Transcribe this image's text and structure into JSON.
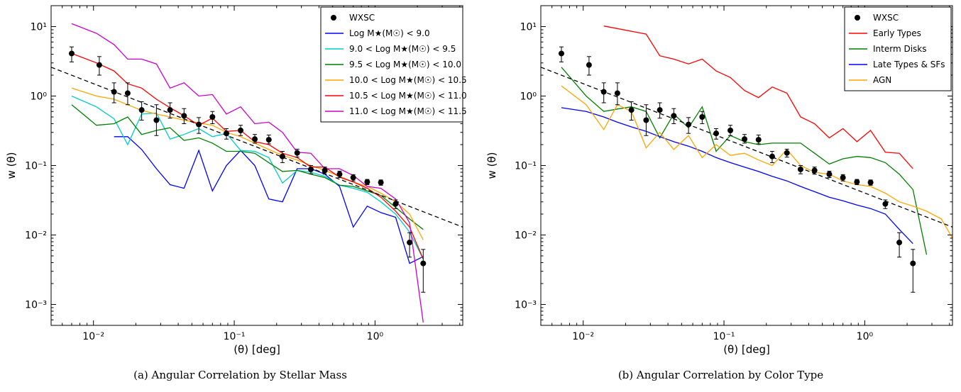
{
  "chart_data": [
    {
      "type": "line",
      "caption": "(a)  Angular Correlation by Stellar Mass",
      "xlabel": "(θ) [deg]",
      "ylabel": "w (θ)",
      "xscale": "log",
      "yscale": "log",
      "xlim": [
        0.005,
        4.2
      ],
      "ylim": [
        0.0005,
        20
      ],
      "xticks": [
        "10⁻²",
        "10⁻¹",
        "10⁰"
      ],
      "yticks": [
        "10⁻³",
        "10⁻²",
        "10⁻¹",
        "10⁰",
        "10¹"
      ],
      "legend_position": "top-right",
      "points": {
        "name": "WXSC",
        "color": "#000000",
        "x": [
          0.007,
          0.011,
          0.014,
          0.0175,
          0.022,
          0.028,
          0.035,
          0.044,
          0.056,
          0.07,
          0.088,
          0.111,
          0.14,
          0.176,
          0.22,
          0.28,
          0.35,
          0.44,
          0.56,
          0.7,
          0.88,
          1.1,
          1.4,
          1.76,
          2.2
        ],
        "y": [
          4.1,
          2.8,
          1.15,
          1.1,
          0.63,
          0.45,
          0.63,
          0.52,
          0.39,
          0.5,
          0.29,
          0.32,
          0.24,
          0.235,
          0.135,
          0.152,
          0.088,
          0.085,
          0.075,
          0.067,
          0.058,
          0.057,
          0.028,
          0.0078,
          0.0039
        ],
        "yerr_lo": [
          1.0,
          0.8,
          0.35,
          0.35,
          0.18,
          0.18,
          0.15,
          0.12,
          0.1,
          0.1,
          0.05,
          0.05,
          0.03,
          0.03,
          0.025,
          0.02,
          0.012,
          0.01,
          0.008,
          0.007,
          0.005,
          0.005,
          0.004,
          0.003,
          0.0024
        ],
        "yerr_hi": [
          1.0,
          0.9,
          0.4,
          0.45,
          0.2,
          0.3,
          0.17,
          0.14,
          0.1,
          0.1,
          0.05,
          0.06,
          0.04,
          0.04,
          0.025,
          0.02,
          0.012,
          0.01,
          0.008,
          0.007,
          0.005,
          0.005,
          0.004,
          0.003,
          0.0023
        ]
      },
      "fit": {
        "x": [
          0.005,
          4.2
        ],
        "y": [
          2.6,
          0.013
        ],
        "color": "#000000"
      },
      "series": [
        {
          "name": "Log M★(M☉) < 9.0",
          "color": "#0000ff",
          "x": [
            0.014,
            0.0175,
            0.022,
            0.028,
            0.035,
            0.044,
            0.056,
            0.07,
            0.088,
            0.111,
            0.14,
            0.176,
            0.22,
            0.28,
            0.35,
            0.44,
            0.56,
            0.7,
            0.88,
            1.1,
            1.4,
            1.76,
            2.2
          ],
          "y": [
            0.26,
            0.26,
            0.17,
            0.09,
            0.053,
            0.047,
            0.165,
            0.043,
            0.1,
            0.165,
            0.1,
            0.033,
            0.03,
            0.09,
            0.09,
            0.075,
            0.05,
            0.013,
            0.026,
            0.021,
            0.018,
            0.0039,
            0.0049
          ]
        },
        {
          "name": "9.0 < Log M★(M☉) < 9.5",
          "color": "#00cccc",
          "x": [
            0.007,
            0.0105,
            0.014,
            0.0175,
            0.022,
            0.028,
            0.035,
            0.044,
            0.056,
            0.07,
            0.088,
            0.111,
            0.14,
            0.176,
            0.22,
            0.28,
            0.35,
            0.44,
            0.56,
            0.7,
            0.88,
            1.1,
            1.4,
            1.76,
            2.2
          ],
          "y": [
            1.0,
            0.7,
            0.47,
            0.2,
            0.55,
            0.57,
            0.24,
            0.28,
            0.34,
            0.26,
            0.29,
            0.165,
            0.16,
            0.13,
            0.056,
            0.085,
            0.08,
            0.07,
            0.052,
            0.047,
            0.041,
            0.03,
            0.02,
            0.011,
            0.0045
          ]
        },
        {
          "name": "9.5 < Log M★(M☉) < 10.0",
          "color": "#008000",
          "x": [
            0.007,
            0.0105,
            0.014,
            0.0175,
            0.022,
            0.028,
            0.035,
            0.044,
            0.056,
            0.07,
            0.088,
            0.111,
            0.14,
            0.176,
            0.22,
            0.28,
            0.35,
            0.44,
            0.56,
            0.7,
            0.88,
            1.1,
            1.4,
            1.76,
            2.2
          ],
          "y": [
            0.75,
            0.38,
            0.4,
            0.5,
            0.28,
            0.32,
            0.35,
            0.23,
            0.25,
            0.21,
            0.16,
            0.16,
            0.15,
            0.11,
            0.082,
            0.085,
            0.075,
            0.067,
            0.052,
            0.05,
            0.043,
            0.037,
            0.025,
            0.017,
            0.012
          ]
        },
        {
          "name": "10.0 < Log M★(M☉) < 10.5",
          "color": "#ffa500",
          "x": [
            0.007,
            0.0105,
            0.014,
            0.0175,
            0.022,
            0.028,
            0.035,
            0.044,
            0.056,
            0.07,
            0.088,
            0.111,
            0.14,
            0.176,
            0.22,
            0.28,
            0.35,
            0.44,
            0.56,
            0.7,
            0.88,
            1.1,
            1.4,
            1.76,
            2.2
          ],
          "y": [
            1.3,
            1.0,
            0.9,
            0.75,
            0.62,
            0.55,
            0.5,
            0.45,
            0.41,
            0.38,
            0.3,
            0.26,
            0.21,
            0.17,
            0.14,
            0.12,
            0.1,
            0.085,
            0.07,
            0.058,
            0.05,
            0.04,
            0.03,
            0.02,
            0.0085
          ]
        },
        {
          "name": "10.5 < Log M★(M☉) < 11.0",
          "color": "#ff0000",
          "x": [
            0.007,
            0.0105,
            0.014,
            0.0175,
            0.022,
            0.028,
            0.035,
            0.044,
            0.056,
            0.07,
            0.088,
            0.111,
            0.14,
            0.176,
            0.22,
            0.28,
            0.35,
            0.44,
            0.56,
            0.7,
            0.88,
            1.1,
            1.4,
            1.76,
            2.2
          ],
          "y": [
            4.1,
            3.0,
            2.3,
            1.5,
            1.3,
            0.9,
            0.68,
            0.52,
            0.38,
            0.48,
            0.31,
            0.32,
            0.22,
            0.2,
            0.15,
            0.13,
            0.095,
            0.095,
            0.068,
            0.058,
            0.047,
            0.035,
            0.022,
            0.013,
            0.0045
          ]
        },
        {
          "name": "11.0 < Log M★(M☉) < 11.5",
          "color": "#cc00cc",
          "x": [
            0.007,
            0.0105,
            0.014,
            0.0175,
            0.022,
            0.028,
            0.035,
            0.044,
            0.056,
            0.07,
            0.088,
            0.111,
            0.14,
            0.176,
            0.22,
            0.28,
            0.35,
            0.44,
            0.56,
            0.7,
            0.88,
            1.1,
            1.4,
            1.76,
            2.2
          ],
          "y": [
            11.0,
            8.0,
            5.5,
            3.4,
            3.4,
            2.9,
            1.3,
            1.55,
            1.0,
            1.05,
            0.55,
            0.7,
            0.4,
            0.42,
            0.3,
            0.155,
            0.15,
            0.09,
            0.09,
            0.072,
            0.05,
            0.047,
            0.033,
            0.015,
            0.00055
          ]
        }
      ]
    },
    {
      "type": "line",
      "caption": "(b)  Angular Correlation by Color Type",
      "xlabel": "(θ) [deg]",
      "ylabel": "w (θ)",
      "xscale": "log",
      "yscale": "log",
      "xlim": [
        0.005,
        4.2
      ],
      "ylim": [
        0.0005,
        20
      ],
      "xticks": [
        "10⁻²",
        "10⁻¹",
        "10⁰"
      ],
      "yticks": [
        "10⁻³",
        "10⁻²",
        "10⁻¹",
        "10⁰",
        "10¹"
      ],
      "legend_position": "top-right",
      "points": {
        "name": "WXSC",
        "color": "#000000",
        "x": [
          0.007,
          0.011,
          0.014,
          0.0175,
          0.022,
          0.028,
          0.035,
          0.044,
          0.056,
          0.07,
          0.088,
          0.111,
          0.14,
          0.176,
          0.22,
          0.28,
          0.35,
          0.44,
          0.56,
          0.7,
          0.88,
          1.1,
          1.4,
          1.76,
          2.2
        ],
        "y": [
          4.1,
          2.8,
          1.15,
          1.1,
          0.63,
          0.45,
          0.63,
          0.52,
          0.39,
          0.5,
          0.29,
          0.32,
          0.24,
          0.235,
          0.135,
          0.152,
          0.088,
          0.085,
          0.075,
          0.067,
          0.058,
          0.057,
          0.028,
          0.0078,
          0.0039
        ],
        "yerr_lo": [
          1.0,
          0.8,
          0.35,
          0.35,
          0.18,
          0.18,
          0.15,
          0.12,
          0.1,
          0.1,
          0.05,
          0.05,
          0.03,
          0.03,
          0.025,
          0.02,
          0.012,
          0.01,
          0.008,
          0.007,
          0.005,
          0.005,
          0.004,
          0.003,
          0.0024
        ],
        "yerr_hi": [
          1.0,
          0.9,
          0.4,
          0.45,
          0.2,
          0.3,
          0.17,
          0.14,
          0.1,
          0.1,
          0.05,
          0.06,
          0.04,
          0.04,
          0.025,
          0.02,
          0.012,
          0.01,
          0.008,
          0.007,
          0.005,
          0.005,
          0.004,
          0.003,
          0.0023
        ]
      },
      "fit": {
        "x": [
          0.005,
          4.2
        ],
        "y": [
          2.6,
          0.013
        ],
        "color": "#000000"
      },
      "series": [
        {
          "name": "Early Types",
          "color": "#ff0000",
          "x": [
            0.014,
            0.028,
            0.035,
            0.044,
            0.056,
            0.07,
            0.088,
            0.111,
            0.14,
            0.176,
            0.22,
            0.28,
            0.35,
            0.44,
            0.56,
            0.7,
            0.88,
            1.1,
            1.4,
            1.76,
            2.2
          ],
          "y": [
            10.2,
            7.8,
            3.8,
            3.4,
            2.9,
            3.4,
            2.3,
            1.85,
            1.2,
            0.95,
            1.35,
            1.1,
            0.5,
            0.4,
            0.25,
            0.34,
            0.22,
            0.32,
            0.155,
            0.15,
            0.09
          ]
        },
        {
          "name": "Interm Disks",
          "color": "#008000",
          "x": [
            0.007,
            0.0105,
            0.014,
            0.0175,
            0.022,
            0.028,
            0.035,
            0.044,
            0.056,
            0.07,
            0.088,
            0.111,
            0.14,
            0.176,
            0.22,
            0.28,
            0.35,
            0.44,
            0.56,
            0.7,
            0.88,
            1.1,
            1.4,
            1.76,
            2.2,
            2.75
          ],
          "y": [
            2.6,
            1.0,
            0.6,
            0.65,
            0.7,
            0.6,
            0.25,
            0.55,
            0.35,
            0.7,
            0.16,
            0.27,
            0.22,
            0.2,
            0.21,
            0.21,
            0.21,
            0.15,
            0.105,
            0.125,
            0.135,
            0.13,
            0.11,
            0.075,
            0.045,
            0.0052
          ]
        },
        {
          "name": "Late Types & SFs",
          "color": "#0000ff",
          "x": [
            0.007,
            0.0105,
            0.014,
            0.0175,
            0.022,
            0.028,
            0.035,
            0.044,
            0.056,
            0.07,
            0.088,
            0.111,
            0.14,
            0.176,
            0.22,
            0.28,
            0.35,
            0.44,
            0.56,
            0.7,
            0.88,
            1.1,
            1.4,
            1.76,
            2.2
          ],
          "y": [
            0.68,
            0.6,
            0.5,
            0.42,
            0.36,
            0.31,
            0.26,
            0.22,
            0.19,
            0.16,
            0.13,
            0.11,
            0.095,
            0.082,
            0.07,
            0.06,
            0.05,
            0.042,
            0.035,
            0.031,
            0.027,
            0.024,
            0.02,
            0.012,
            0.0075
          ]
        },
        {
          "name": "AGN",
          "color": "#ffa500",
          "x": [
            0.007,
            0.0105,
            0.014,
            0.0175,
            0.022,
            0.028,
            0.035,
            0.044,
            0.056,
            0.07,
            0.088,
            0.111,
            0.14,
            0.176,
            0.22,
            0.28,
            0.35,
            0.44,
            0.56,
            0.7,
            0.88,
            1.1,
            1.4,
            1.76,
            2.2,
            2.75,
            3.5,
            4.2
          ],
          "y": [
            1.4,
            0.75,
            0.33,
            0.75,
            0.6,
            0.18,
            0.3,
            0.17,
            0.27,
            0.13,
            0.2,
            0.14,
            0.15,
            0.12,
            0.1,
            0.17,
            0.1,
            0.08,
            0.075,
            0.06,
            0.053,
            0.05,
            0.04,
            0.03,
            0.026,
            0.022,
            0.017,
            0.009
          ]
        }
      ]
    }
  ]
}
